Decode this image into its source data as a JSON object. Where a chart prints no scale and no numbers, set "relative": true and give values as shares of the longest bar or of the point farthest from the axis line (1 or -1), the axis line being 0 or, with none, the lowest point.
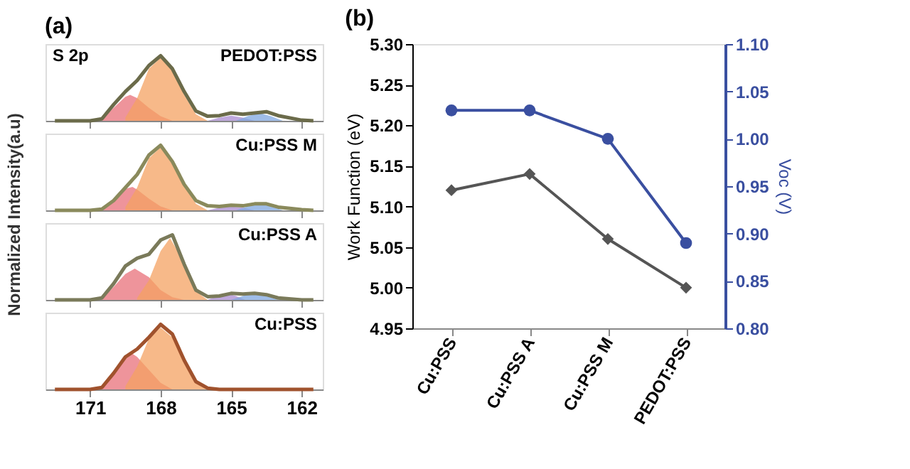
{
  "chart_data": [
    {
      "type": "line",
      "relative": true,
      "title": "(a)",
      "ylabel": "Normalized Intensity(a.u)",
      "annotations": [
        "S 2p",
        "PEDOT:PSS"
      ],
      "xlim": [
        172.9,
        161.1
      ],
      "xticks": [
        171,
        168,
        165,
        162
      ],
      "tick_labels": false,
      "grid": false,
      "series": [
        {
          "type": "area",
          "color": "#e8707a",
          "x": [
            170.5,
            170,
            169.5,
            169.3,
            169,
            168.5,
            168,
            167.5
          ],
          "values": [
            0.02,
            0.2,
            0.37,
            0.4,
            0.35,
            0.2,
            0.07,
            0
          ]
        },
        {
          "type": "area",
          "color": "#f4a261",
          "x": [
            169.5,
            169,
            168.5,
            168,
            167.5,
            167,
            166.5,
            166
          ],
          "values": [
            0.05,
            0.35,
            0.8,
            0.97,
            0.78,
            0.4,
            0.1,
            0
          ]
        },
        {
          "type": "area",
          "color": "#a98bd0",
          "x": [
            166,
            165.5,
            165,
            164.5,
            164
          ],
          "values": [
            0,
            0.05,
            0.08,
            0.05,
            0
          ]
        },
        {
          "type": "area",
          "color": "#7fa7e0",
          "x": [
            164.8,
            164.3,
            163.8,
            163.3,
            162.8
          ],
          "values": [
            0,
            0.07,
            0.12,
            0.07,
            0
          ]
        },
        {
          "color": "#6b6b4a",
          "x": [
            172.5,
            171,
            170.5,
            170,
            169.5,
            169,
            168.5,
            168,
            167.5,
            167,
            166.5,
            166,
            165.5,
            165,
            164.5,
            164,
            163.5,
            163,
            162,
            161.5
          ],
          "values": [
            0,
            0,
            0.03,
            0.25,
            0.45,
            0.62,
            0.85,
            1.0,
            0.8,
            0.45,
            0.15,
            0.07,
            0.08,
            0.12,
            0.1,
            0.12,
            0.14,
            0.08,
            0.01,
            0
          ]
        }
      ]
    },
    {
      "type": "line",
      "relative": true,
      "annotations": [
        "Cu:PSS M"
      ],
      "xlim": [
        172.9,
        161.1
      ],
      "xticks": [
        171,
        168,
        165,
        162
      ],
      "tick_labels": false,
      "grid": false,
      "series": [
        {
          "type": "area",
          "color": "#e8707a",
          "x": [
            170.5,
            170,
            169.5,
            169.2,
            169,
            168.5,
            168,
            167.5
          ],
          "values": [
            0.02,
            0.18,
            0.33,
            0.36,
            0.32,
            0.18,
            0.06,
            0
          ]
        },
        {
          "type": "area",
          "color": "#f4a261",
          "x": [
            169.5,
            169,
            168.5,
            168,
            167.5,
            167,
            166.5,
            166
          ],
          "values": [
            0.05,
            0.35,
            0.8,
            0.97,
            0.75,
            0.38,
            0.1,
            0
          ]
        },
        {
          "type": "area",
          "color": "#a98bd0",
          "x": [
            166,
            165.5,
            165,
            164.5,
            164
          ],
          "values": [
            0,
            0.04,
            0.06,
            0.04,
            0
          ]
        },
        {
          "type": "area",
          "color": "#7fa7e0",
          "x": [
            164.8,
            164.3,
            163.8,
            163.3,
            162.8
          ],
          "values": [
            0,
            0.06,
            0.1,
            0.06,
            0
          ]
        },
        {
          "color": "#8a8a5c",
          "x": [
            172.5,
            171,
            170.5,
            170,
            169.5,
            169,
            168.5,
            168,
            167.5,
            167,
            166.5,
            166,
            165.5,
            165,
            164.5,
            164,
            163.5,
            163,
            162,
            161.5
          ],
          "values": [
            0,
            0,
            0.02,
            0.15,
            0.35,
            0.55,
            0.85,
            1.0,
            0.75,
            0.4,
            0.15,
            0.07,
            0.06,
            0.08,
            0.07,
            0.1,
            0.1,
            0.05,
            0.01,
            0
          ]
        }
      ]
    },
    {
      "type": "line",
      "relative": true,
      "annotations": [
        "Cu:PSS A"
      ],
      "xlim": [
        172.9,
        161.1
      ],
      "xticks": [
        171,
        168,
        165,
        162
      ],
      "tick_labels": false,
      "grid": false,
      "series": [
        {
          "type": "area",
          "color": "#e8707a",
          "x": [
            170.5,
            170,
            169.5,
            169.1,
            168.5,
            168,
            167.5,
            167
          ],
          "values": [
            0.02,
            0.2,
            0.4,
            0.48,
            0.35,
            0.15,
            0.04,
            0
          ]
        },
        {
          "type": "area",
          "color": "#f4a261",
          "x": [
            169,
            168.5,
            168,
            167.6,
            167.2,
            166.8,
            166.3,
            166
          ],
          "values": [
            0.03,
            0.3,
            0.75,
            0.95,
            0.7,
            0.35,
            0.08,
            0
          ]
        },
        {
          "type": "area",
          "color": "#a98bd0",
          "x": [
            166,
            165.6,
            165.2,
            164.8,
            164.4
          ],
          "values": [
            0,
            0.06,
            0.1,
            0.06,
            0
          ]
        },
        {
          "type": "area",
          "color": "#7fa7e0",
          "x": [
            165,
            164.5,
            164,
            163.5,
            163
          ],
          "values": [
            0,
            0.06,
            0.1,
            0.06,
            0
          ]
        },
        {
          "color": "#7a7a5a",
          "x": [
            172.5,
            171,
            170.5,
            170,
            169.5,
            169,
            168.5,
            168,
            167.5,
            167,
            166.5,
            166,
            165.5,
            165,
            164.5,
            164,
            163.5,
            163,
            162,
            161.5
          ],
          "values": [
            0,
            0,
            0.03,
            0.25,
            0.52,
            0.64,
            0.7,
            0.92,
            1.0,
            0.55,
            0.15,
            0.05,
            0.06,
            0.1,
            0.09,
            0.1,
            0.08,
            0.03,
            0,
            0
          ]
        }
      ]
    },
    {
      "type": "line",
      "relative": true,
      "annotations": [
        "Cu:PSS"
      ],
      "xlim": [
        172.9,
        161.1
      ],
      "xticks": [
        171,
        168,
        165,
        162
      ],
      "tick_labels": "x",
      "grid": false,
      "series": [
        {
          "type": "area",
          "color": "#e8707a",
          "x": [
            170.5,
            170,
            169.5,
            169.2,
            169,
            168.5,
            168,
            167.5
          ],
          "values": [
            0.03,
            0.25,
            0.5,
            0.55,
            0.5,
            0.3,
            0.1,
            0
          ]
        },
        {
          "type": "area",
          "color": "#f4a261",
          "x": [
            169.5,
            169,
            168.5,
            168,
            167.5,
            167,
            166.5,
            166
          ],
          "values": [
            0.05,
            0.35,
            0.78,
            0.95,
            0.8,
            0.42,
            0.1,
            0
          ]
        },
        {
          "color": "#a0522d",
          "x": [
            172.5,
            171,
            170.5,
            170,
            169.5,
            169,
            168.5,
            168,
            167.5,
            167,
            166.5,
            166,
            165.5,
            165,
            164.5,
            164,
            163.5,
            163,
            162,
            161.5
          ],
          "values": [
            0,
            0,
            0.03,
            0.25,
            0.5,
            0.62,
            0.8,
            1.0,
            0.85,
            0.45,
            0.12,
            0.02,
            0,
            0,
            0,
            0,
            0,
            0,
            0,
            0
          ]
        }
      ]
    },
    {
      "type": "line",
      "title": "(b)",
      "ylabel": "Work Function (eV)",
      "y2label": "Voc (V)",
      "categories": [
        "Cu:PSS",
        "Cu:PSS A",
        "Cu:PSS M",
        "PEDOT:PSS"
      ],
      "ylim": [
        4.95,
        5.3
      ],
      "yticks": [
        {
          "value": 4.95,
          "label": "4.95"
        },
        {
          "value": 5.0,
          "label": "5.00"
        },
        {
          "value": 5.05,
          "label": "5.05"
        },
        {
          "value": 5.1,
          "label": "5.10"
        },
        {
          "value": 5.15,
          "label": "5.15"
        },
        {
          "value": 5.2,
          "label": "5.20"
        },
        {
          "value": 5.25,
          "label": "5.25"
        },
        {
          "value": 5.3,
          "label": "5.30"
        }
      ],
      "y2lim": [
        0.8,
        1.1
      ],
      "y2ticks": [
        {
          "value": 0.8,
          "label": "0.80"
        },
        {
          "value": 0.85,
          "label": "0.85"
        },
        {
          "value": 0.9,
          "label": "0.90"
        },
        {
          "value": 0.95,
          "label": "0.95"
        },
        {
          "value": 1.0,
          "label": "1.00"
        },
        {
          "value": 1.05,
          "label": "1.05"
        },
        {
          "value": 1.1,
          "label": "1.10"
        }
      ],
      "grid": false,
      "series": [
        {
          "color": "#555555",
          "marker": "diamond",
          "values": [
            5.12,
            5.14,
            5.06,
            5.0
          ]
        },
        {
          "color": "#3a4fa0",
          "marker": "circle",
          "axis": "y2",
          "values": [
            1.03,
            1.03,
            1.0,
            0.89
          ]
        }
      ]
    }
  ]
}
